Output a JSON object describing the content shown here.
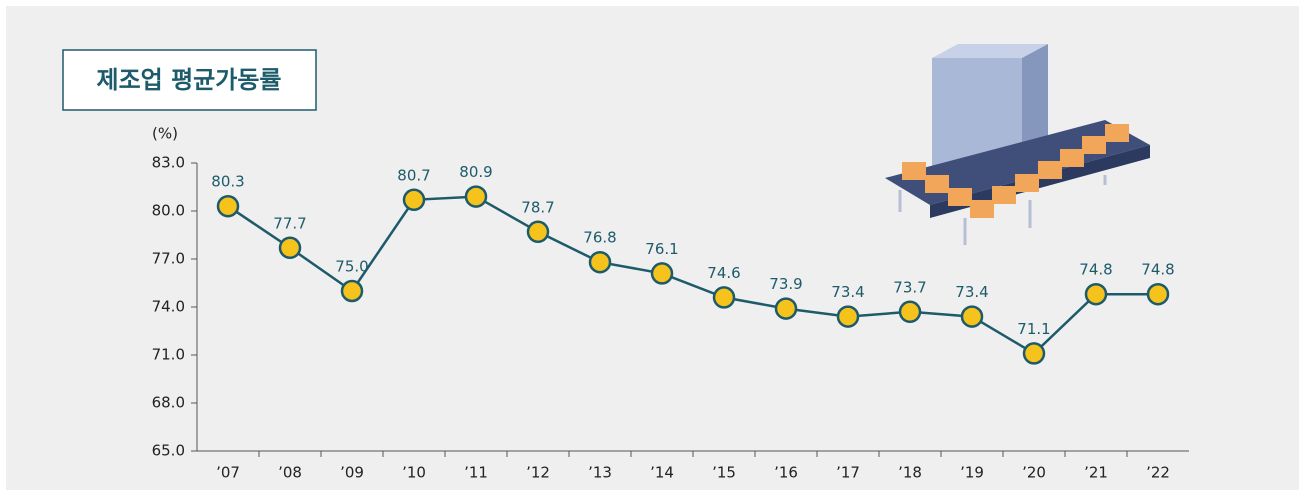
{
  "chart_data": {
    "type": "line",
    "title": "제조업 평균가동률",
    "y_axis_label": "(%)",
    "categories": [
      "’07",
      "’08",
      "’09",
      "’10",
      "’11",
      "’12",
      "’13",
      "’14",
      "’15",
      "’16",
      "’17",
      "’18",
      "’19",
      "’20",
      "’21",
      "’22"
    ],
    "values": [
      80.3,
      77.7,
      75.0,
      80.7,
      80.9,
      78.7,
      76.8,
      76.1,
      74.6,
      73.9,
      73.4,
      73.7,
      73.4,
      71.1,
      74.8,
      74.8
    ],
    "value_labels": [
      "80.3",
      "77.7",
      "75.0",
      "80.7",
      "80.9",
      "78.7",
      "76.8",
      "76.1",
      "74.6",
      "73.9",
      "73.4",
      "73.7",
      "73.4",
      "71.1",
      "74.8",
      "74.8"
    ],
    "color": "#1d5b6b",
    "marker_color": "#f6c21c",
    "ylim": [
      65,
      83
    ],
    "yticks": [
      {
        "value": 65,
        "label": "65.0"
      },
      {
        "value": 68,
        "label": "68.0"
      },
      {
        "value": 71,
        "label": "71.0"
      },
      {
        "value": 74,
        "label": "74.0"
      },
      {
        "value": 77,
        "label": "77.0"
      },
      {
        "value": 80,
        "label": "80.0"
      },
      {
        "value": 83,
        "label": "83.0"
      }
    ]
  }
}
